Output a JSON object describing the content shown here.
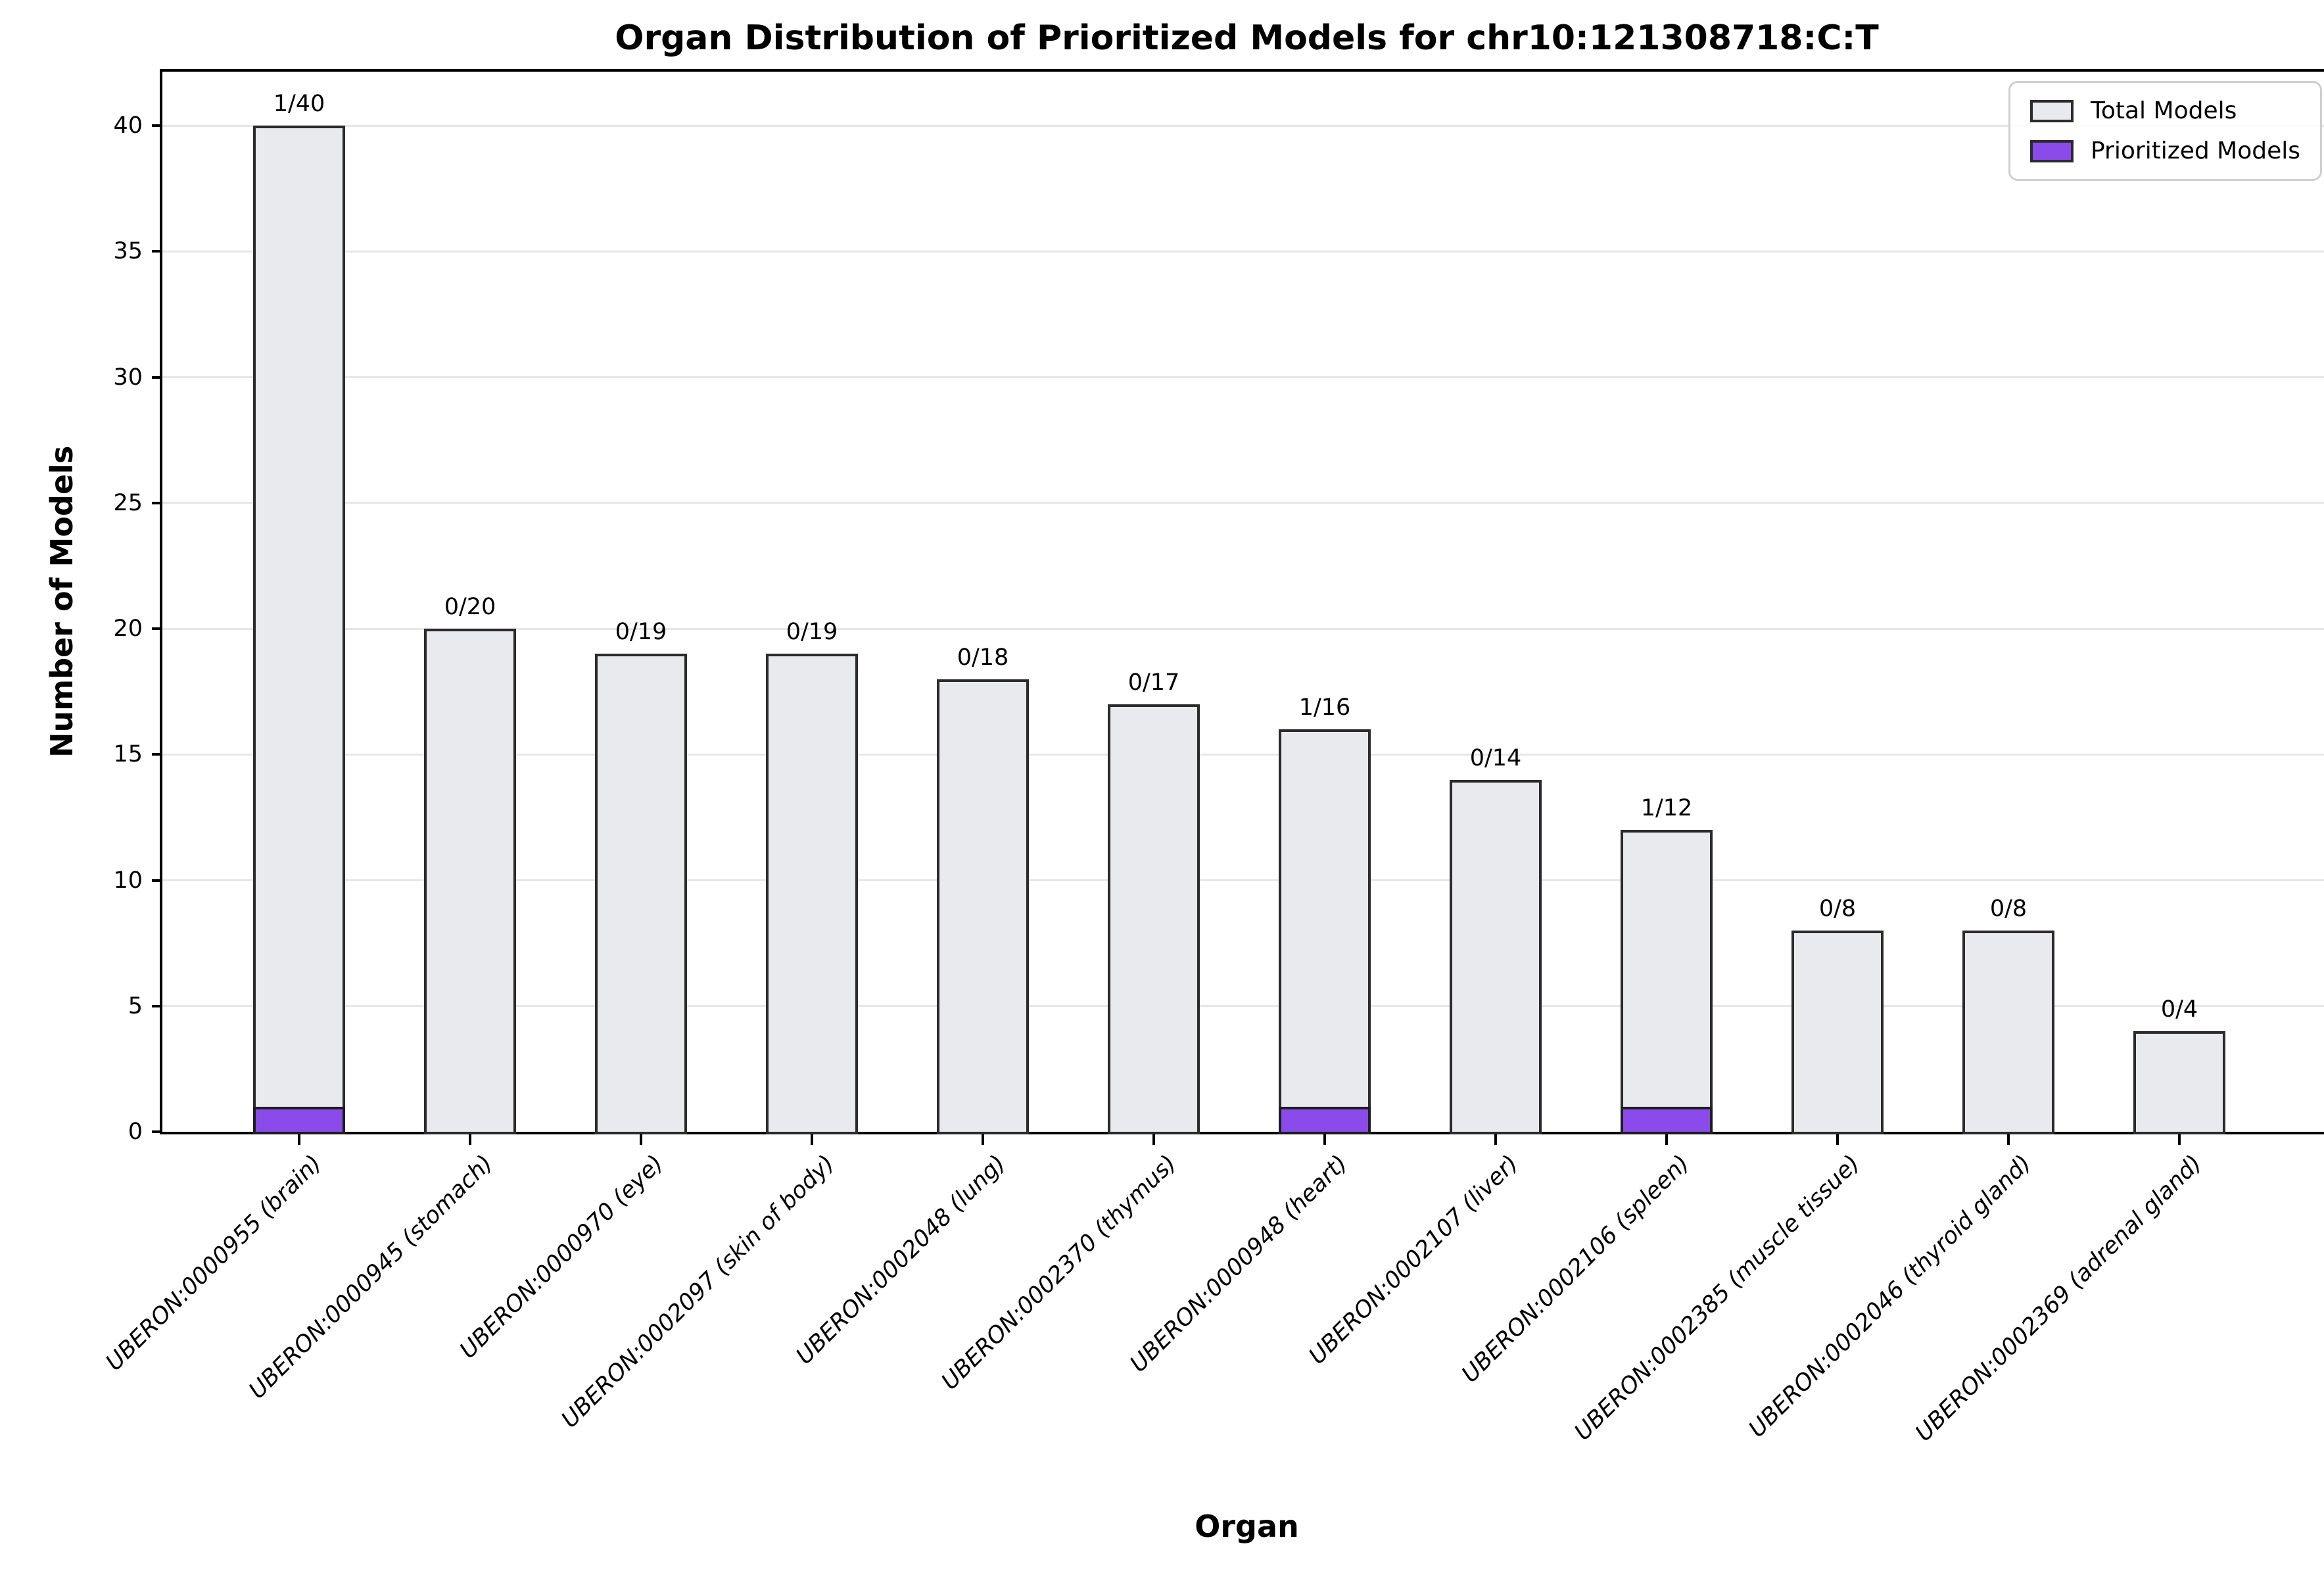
{
  "title": "Organ Distribution of Prioritized Models for chr10:121308718:C:T",
  "chart_data": {
    "type": "bar",
    "title": "Organ Distribution of Prioritized Models for chr10:121308718:C:T",
    "xlabel": "Organ",
    "ylabel": "Number of Models",
    "ylim": [
      0,
      42.15
    ],
    "yticks": [
      0,
      5,
      10,
      15,
      20,
      25,
      30,
      35,
      40
    ],
    "grid": "horizontal",
    "legend_position": "upper right",
    "categories": [
      "UBERON:0000955 (brain)",
      "UBERON:0000945 (stomach)",
      "UBERON:0000970 (eye)",
      "UBERON:0002097 (skin of body)",
      "UBERON:0002048 (lung)",
      "UBERON:0002370 (thymus)",
      "UBERON:0000948 (heart)",
      "UBERON:0002107 (liver)",
      "UBERON:0002106 (spleen)",
      "UBERON:0002385 (muscle tissue)",
      "UBERON:0002046 (thyroid gland)",
      "UBERON:0002369 (adrenal gland)"
    ],
    "series": [
      {
        "name": "Total Models",
        "values": [
          40,
          20,
          19,
          19,
          18,
          17,
          16,
          14,
          12,
          8,
          8,
          4
        ],
        "color": "#e9eaee"
      },
      {
        "name": "Prioritized Models",
        "values": [
          1,
          0,
          0,
          0,
          0,
          0,
          1,
          0,
          1,
          0,
          0,
          0
        ],
        "color": "#8b4beb"
      }
    ],
    "bar_labels": [
      "1/40",
      "0/20",
      "0/19",
      "0/19",
      "0/18",
      "0/17",
      "1/16",
      "0/14",
      "1/12",
      "0/8",
      "0/8",
      "0/4"
    ],
    "colors": {
      "bar_edge": "#2b2b2b",
      "gridline": "#e7e7e7",
      "spine": "#000000"
    }
  }
}
